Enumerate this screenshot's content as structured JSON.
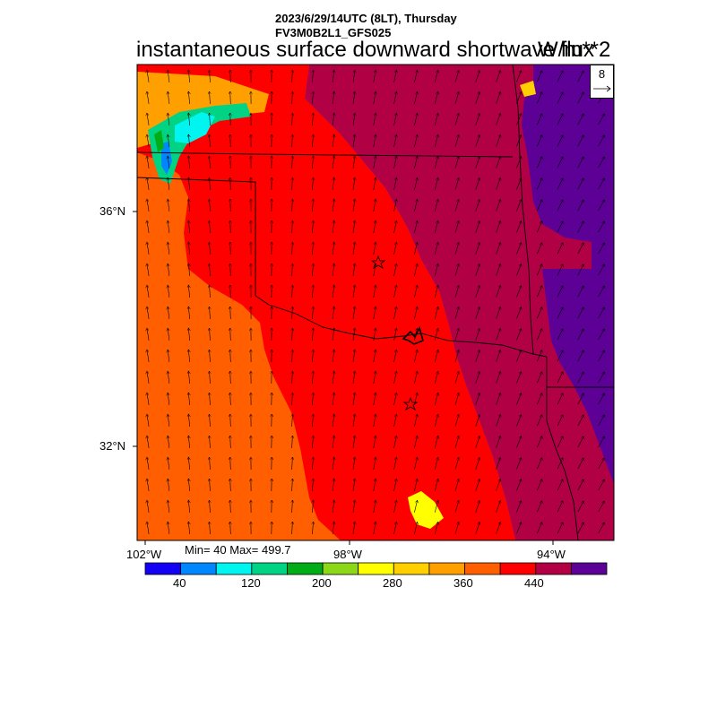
{
  "header": {
    "line1": "2023/6/29/14UTC (8LT), Thursday",
    "line2": "FV3M0B2L1_GFS025"
  },
  "title": "instantaneous surface downward shortwave flux",
  "units": "W/m**2",
  "lat_labels": [
    "36°N",
    "32°N"
  ],
  "lon_labels": [
    "102°W",
    "98°W",
    "94°W"
  ],
  "stats": "Min= 40 Max= 499.7",
  "colorbar": {
    "colors": [
      "#1400f5",
      "#0087ff",
      "#00f5f0",
      "#00d484",
      "#00ad16",
      "#8cd716",
      "#ffff00",
      "#ffcf00",
      "#ff9f00",
      "#ff5f00",
      "#ff0000",
      "#b20044",
      "#5c0096"
    ],
    "labels": [
      "40",
      "120",
      "200",
      "280",
      "360",
      "440"
    ]
  },
  "vector_reference": {
    "value": "8"
  },
  "map": {
    "colors": {
      "orange": "#ff5f00",
      "red": "#ff0000",
      "maroon": "#b20044",
      "purple": "#5c0096",
      "yellow": "#ffff00",
      "amber": "#ffcf00",
      "cyan": "#00f5f0",
      "teal": "#00d484",
      "green": "#00ad16",
      "blue": "#0087ff"
    },
    "markers": [
      "city-star",
      "city-star"
    ]
  }
}
